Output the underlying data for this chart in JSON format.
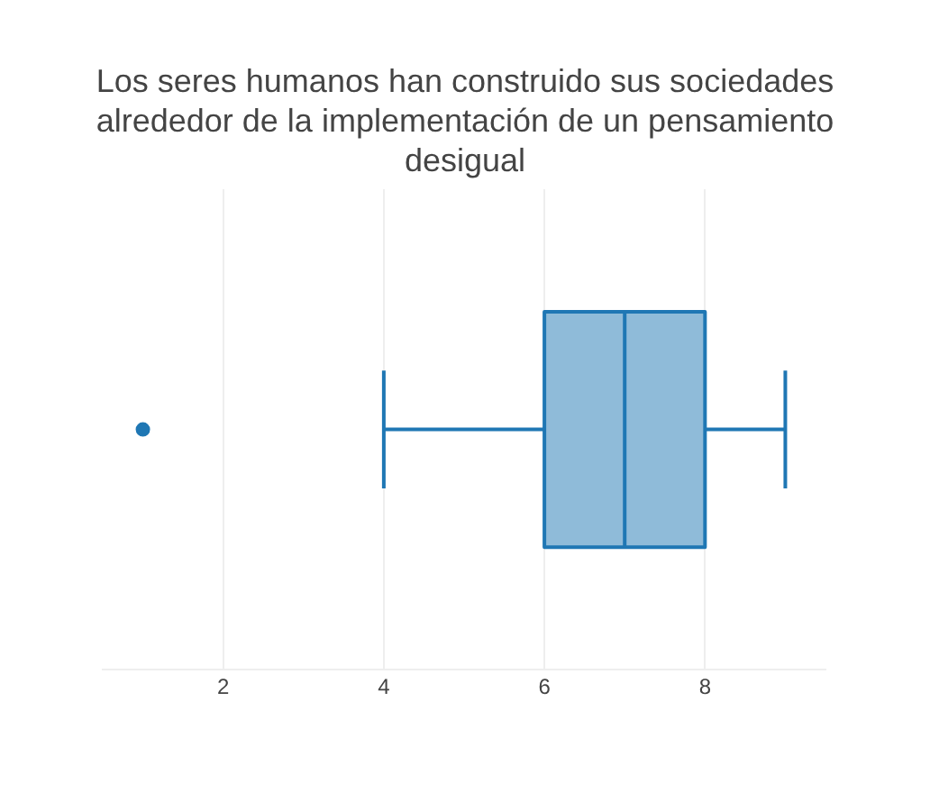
{
  "chart_data": {
    "type": "box",
    "title": "Los seres humanos han construido sus sociedades alrededor de la implementación de un pensamiento desigual",
    "orientation": "horizontal",
    "categories": [
      null
    ],
    "series": [
      {
        "color": "#1f77b4",
        "boxes": [
          {
            "low": 4,
            "q1": 6,
            "median": 7,
            "q3": 8,
            "high": 9,
            "outliers": [
              1
            ]
          }
        ]
      }
    ],
    "xlim": [
      0.5,
      9.5
    ],
    "xticks": [
      2,
      4,
      6,
      8
    ],
    "grid": "x",
    "tick_labels": "x",
    "legend": false
  }
}
